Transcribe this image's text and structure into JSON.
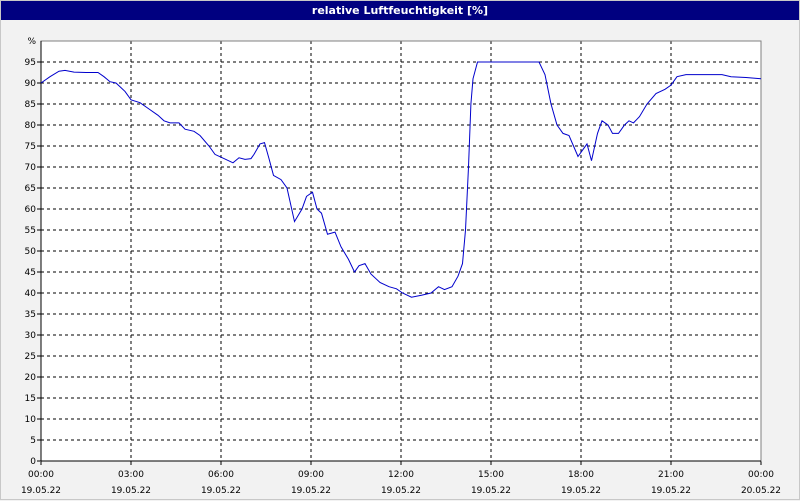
{
  "title": "relative Luftfeuchtigkeit [%]",
  "colors": {
    "titlebar": "#000080",
    "title_text": "#ffffff",
    "background": "#f2f2f2",
    "plot_background": "#ffffff",
    "grid": "#000000",
    "series": "#0000cc"
  },
  "chart_data": {
    "type": "line",
    "title": "relative Luftfeuchtigkeit [%]",
    "xlabel": "",
    "ylabel": "%",
    "ylim": [
      0,
      100
    ],
    "y_ticks": [
      0,
      5,
      10,
      15,
      20,
      25,
      30,
      35,
      40,
      45,
      50,
      55,
      60,
      65,
      70,
      75,
      80,
      85,
      90,
      95
    ],
    "x_unit": "hours",
    "xlim": [
      0,
      24
    ],
    "x_ticks": [
      {
        "x": 0,
        "time": "00:00",
        "date": "19.05.22"
      },
      {
        "x": 3,
        "time": "03:00",
        "date": "19.05.22"
      },
      {
        "x": 6,
        "time": "06:00",
        "date": "19.05.22"
      },
      {
        "x": 9,
        "time": "09:00",
        "date": "19.05.22"
      },
      {
        "x": 12,
        "time": "12:00",
        "date": "19.05.22"
      },
      {
        "x": 15,
        "time": "15:00",
        "date": "19.05.22"
      },
      {
        "x": 18,
        "time": "18:00",
        "date": "19.05.22"
      },
      {
        "x": 21,
        "time": "21:00",
        "date": "19.05.22"
      },
      {
        "x": 24,
        "time": "00:00",
        "date": "20.05.22"
      }
    ],
    "grid": true,
    "legend": "none",
    "series": [
      {
        "points": [
          [
            0.0,
            90.0
          ],
          [
            0.3,
            91.5
          ],
          [
            0.6,
            92.8
          ],
          [
            0.8,
            93.0
          ],
          [
            1.1,
            92.6
          ],
          [
            1.5,
            92.5
          ],
          [
            1.9,
            92.5
          ],
          [
            2.1,
            91.5
          ],
          [
            2.3,
            90.3
          ],
          [
            2.5,
            90.0
          ],
          [
            2.8,
            88.0
          ],
          [
            3.0,
            86.0
          ],
          [
            3.3,
            85.3
          ],
          [
            3.6,
            83.8
          ],
          [
            3.9,
            82.3
          ],
          [
            4.1,
            81.0
          ],
          [
            4.3,
            80.5
          ],
          [
            4.6,
            80.5
          ],
          [
            4.8,
            79.0
          ],
          [
            5.1,
            78.5
          ],
          [
            5.3,
            77.5
          ],
          [
            5.6,
            75.0
          ],
          [
            5.8,
            73.0
          ],
          [
            6.1,
            72.0
          ],
          [
            6.4,
            71.0
          ],
          [
            6.6,
            72.2
          ],
          [
            6.8,
            71.8
          ],
          [
            7.0,
            72.0
          ],
          [
            7.1,
            73.0
          ],
          [
            7.3,
            75.5
          ],
          [
            7.45,
            75.8
          ],
          [
            7.6,
            72.0
          ],
          [
            7.75,
            68.0
          ],
          [
            8.0,
            67.0
          ],
          [
            8.2,
            65.0
          ],
          [
            8.45,
            57.0
          ],
          [
            8.7,
            60.0
          ],
          [
            8.85,
            63.0
          ],
          [
            9.05,
            64.0
          ],
          [
            9.2,
            60.0
          ],
          [
            9.35,
            59.0
          ],
          [
            9.55,
            54.0
          ],
          [
            9.8,
            54.5
          ],
          [
            10.0,
            51.0
          ],
          [
            10.25,
            48.0
          ],
          [
            10.45,
            45.0
          ],
          [
            10.6,
            46.5
          ],
          [
            10.8,
            47.0
          ],
          [
            11.0,
            44.5
          ],
          [
            11.3,
            42.5
          ],
          [
            11.6,
            41.5
          ],
          [
            11.85,
            41.0
          ],
          [
            12.05,
            40.0
          ],
          [
            12.35,
            39.0
          ],
          [
            12.7,
            39.5
          ],
          [
            13.0,
            40.0
          ],
          [
            13.25,
            41.5
          ],
          [
            13.45,
            40.8
          ],
          [
            13.7,
            41.5
          ],
          [
            13.9,
            44.0
          ],
          [
            14.05,
            47.0
          ],
          [
            14.15,
            55.0
          ],
          [
            14.25,
            70.0
          ],
          [
            14.33,
            85.0
          ],
          [
            14.4,
            91.0
          ],
          [
            14.55,
            95.0
          ],
          [
            15.0,
            95.0
          ],
          [
            15.5,
            95.0
          ],
          [
            16.0,
            95.0
          ],
          [
            16.6,
            95.0
          ],
          [
            16.8,
            92.0
          ],
          [
            17.0,
            85.0
          ],
          [
            17.2,
            80.0
          ],
          [
            17.4,
            78.0
          ],
          [
            17.6,
            77.5
          ],
          [
            17.75,
            75.0
          ],
          [
            17.9,
            72.5
          ],
          [
            18.05,
            74.0
          ],
          [
            18.2,
            75.5
          ],
          [
            18.35,
            71.5
          ],
          [
            18.55,
            78.0
          ],
          [
            18.7,
            81.0
          ],
          [
            18.9,
            80.0
          ],
          [
            19.05,
            78.0
          ],
          [
            19.25,
            78.0
          ],
          [
            19.45,
            80.0
          ],
          [
            19.6,
            81.0
          ],
          [
            19.75,
            80.5
          ],
          [
            19.95,
            82.0
          ],
          [
            20.2,
            85.0
          ],
          [
            20.5,
            87.5
          ],
          [
            20.8,
            88.5
          ],
          [
            21.0,
            89.5
          ],
          [
            21.2,
            91.5
          ],
          [
            21.5,
            92.0
          ],
          [
            22.0,
            92.0
          ],
          [
            22.7,
            92.0
          ],
          [
            23.0,
            91.5
          ],
          [
            23.5,
            91.3
          ],
          [
            24.0,
            91.0
          ]
        ]
      }
    ]
  }
}
